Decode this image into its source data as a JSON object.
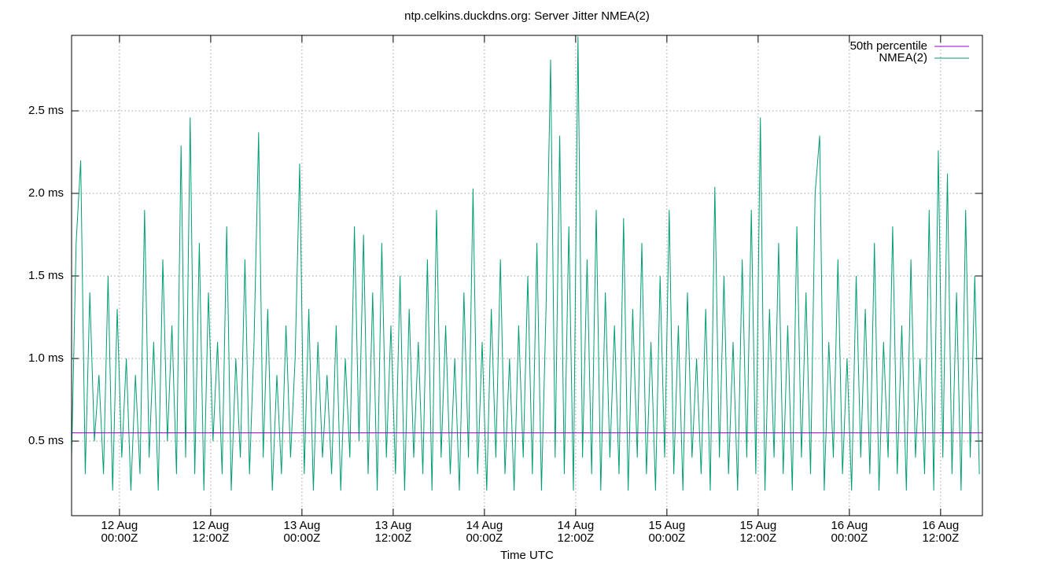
{
  "chart_data": {
    "type": "line",
    "title": "ntp.celkins.duckdns.org: Server Jitter NMEA(2)",
    "x_label": "Time UTC",
    "xlim": [
      -6.3,
      113.5
    ],
    "ylim": [
      0.048,
      2.957
    ],
    "grid": true,
    "legend": "upper right",
    "xticks": [
      {
        "value": 0,
        "label": [
          "12 Aug",
          "00:00Z"
        ]
      },
      {
        "value": 12,
        "label": [
          "12 Aug",
          "12:00Z"
        ]
      },
      {
        "value": 24,
        "label": [
          "13 Aug",
          "00:00Z"
        ]
      },
      {
        "value": 36,
        "label": [
          "13 Aug",
          "12:00Z"
        ]
      },
      {
        "value": 48,
        "label": [
          "14 Aug",
          "00:00Z"
        ]
      },
      {
        "value": 60,
        "label": [
          "14 Aug",
          "12:00Z"
        ]
      },
      {
        "value": 72,
        "label": [
          "15 Aug",
          "00:00Z"
        ]
      },
      {
        "value": 84,
        "label": [
          "15 Aug",
          "12:00Z"
        ]
      },
      {
        "value": 96,
        "label": [
          "16 Aug",
          "00:00Z"
        ]
      },
      {
        "value": 108,
        "label": [
          "16 Aug",
          "12:00Z"
        ]
      }
    ],
    "yticks": [
      {
        "value": 0.5,
        "label": "0.5 ms"
      },
      {
        "value": 1.0,
        "label": "1.0 ms"
      },
      {
        "value": 1.5,
        "label": "1.5 ms"
      },
      {
        "value": 2.0,
        "label": "2.0 ms"
      },
      {
        "value": 2.5,
        "label": "2.5 ms"
      }
    ],
    "series": [
      {
        "name": "50th percentile",
        "color": "#9400d3",
        "x": [
          -6.3,
          113.5
        ],
        "values": [
          0.55,
          0.55
        ]
      },
      {
        "name": "NMEA(2)",
        "color": "#009e73",
        "x": [
          -6.3,
          -5.7,
          -5.1,
          -4.5,
          -3.9,
          -3.3,
          -2.7,
          -2.1,
          -1.5,
          -0.9,
          -0.3,
          0.3,
          0.9,
          1.5,
          2.1,
          2.7,
          3.3,
          3.9,
          4.5,
          5.1,
          5.7,
          6.3,
          6.9,
          7.5,
          8.1,
          8.7,
          9.3,
          9.9,
          10.5,
          11.1,
          11.7,
          12.3,
          12.9,
          13.5,
          14.1,
          14.7,
          15.3,
          15.9,
          16.5,
          17.1,
          17.7,
          18.3,
          18.9,
          19.5,
          20.1,
          20.7,
          21.3,
          21.9,
          22.5,
          23.1,
          23.7,
          24.3,
          24.9,
          25.5,
          26.1,
          26.7,
          27.3,
          27.9,
          28.5,
          29.1,
          29.7,
          30.3,
          30.9,
          31.5,
          32.1,
          32.7,
          33.3,
          33.9,
          34.5,
          35.1,
          35.7,
          36.3,
          36.9,
          37.5,
          38.1,
          38.7,
          39.3,
          39.9,
          40.5,
          41.1,
          41.7,
          42.3,
          42.9,
          43.5,
          44.1,
          44.7,
          45.3,
          45.9,
          46.5,
          47.1,
          47.7,
          48.3,
          48.9,
          49.5,
          50.1,
          50.7,
          51.3,
          51.9,
          52.5,
          53.1,
          53.7,
          54.3,
          54.9,
          55.5,
          56.1,
          56.7,
          57.3,
          57.9,
          58.5,
          59.1,
          59.7,
          60.3,
          60.9,
          61.5,
          62.1,
          62.7,
          63.3,
          63.9,
          64.5,
          65.1,
          65.7,
          66.3,
          66.9,
          67.5,
          68.1,
          68.7,
          69.3,
          69.9,
          70.5,
          71.1,
          71.7,
          72.3,
          72.9,
          73.5,
          74.1,
          74.7,
          75.3,
          75.9,
          76.5,
          77.1,
          77.7,
          78.3,
          78.9,
          79.5,
          80.1,
          80.7,
          81.3,
          81.9,
          82.5,
          83.1,
          83.7,
          84.3,
          84.9,
          85.5,
          86.1,
          86.7,
          87.3,
          87.9,
          88.5,
          89.1,
          89.7,
          90.3,
          90.9,
          91.5,
          92.1,
          92.7,
          93.3,
          93.9,
          94.5,
          95.1,
          95.7,
          96.3,
          96.9,
          97.5,
          98.1,
          98.7,
          99.3,
          99.9,
          100.5,
          101.1,
          101.7,
          102.3,
          102.9,
          103.5,
          104.1,
          104.7,
          105.3,
          105.9,
          106.5,
          107.1,
          107.7,
          108.3,
          108.9,
          109.5,
          110.1,
          110.7,
          111.3,
          111.9,
          112.5,
          113.1
        ],
        "values": [
          0.4,
          1.7,
          2.2,
          0.3,
          1.4,
          0.5,
          0.9,
          0.3,
          1.5,
          0.2,
          1.3,
          0.4,
          1.0,
          0.2,
          0.9,
          0.3,
          1.9,
          0.4,
          1.1,
          0.2,
          1.6,
          0.5,
          1.2,
          0.3,
          2.29,
          0.4,
          2.46,
          0.3,
          1.7,
          0.2,
          1.4,
          0.5,
          1.1,
          0.3,
          1.8,
          0.2,
          1.0,
          0.4,
          1.6,
          0.3,
          1.1,
          2.37,
          0.4,
          1.3,
          0.2,
          0.9,
          0.3,
          1.2,
          0.4,
          1.0,
          2.18,
          0.3,
          1.3,
          0.2,
          1.1,
          0.4,
          0.9,
          0.3,
          1.2,
          0.2,
          1.0,
          0.4,
          1.8,
          0.5,
          1.75,
          0.3,
          1.4,
          0.2,
          1.7,
          0.4,
          1.2,
          0.3,
          1.5,
          0.2,
          1.3,
          0.4,
          1.1,
          0.3,
          1.6,
          0.2,
          1.9,
          0.4,
          1.2,
          0.3,
          1.0,
          0.2,
          1.4,
          0.4,
          2.03,
          0.3,
          1.1,
          0.2,
          1.3,
          0.4,
          1.6,
          0.3,
          1.0,
          0.2,
          1.2,
          0.4,
          1.5,
          0.3,
          1.7,
          0.2,
          1.3,
          2.81,
          0.4,
          2.35,
          0.3,
          1.8,
          0.2,
          2.95,
          0.4,
          1.6,
          0.3,
          1.9,
          0.2,
          1.4,
          0.4,
          1.2,
          0.3,
          1.85,
          0.2,
          1.3,
          0.4,
          1.7,
          0.3,
          1.1,
          0.2,
          1.5,
          0.4,
          1.9,
          0.3,
          1.2,
          0.2,
          1.4,
          0.4,
          1.0,
          0.3,
          1.3,
          0.2,
          2.04,
          0.4,
          1.5,
          0.3,
          1.1,
          0.2,
          1.6,
          0.4,
          1.9,
          0.3,
          2.46,
          0.2,
          1.3,
          0.4,
          1.7,
          0.3,
          1.2,
          0.2,
          1.8,
          0.4,
          1.4,
          0.3,
          2.0,
          2.35,
          0.2,
          1.1,
          0.4,
          1.6,
          0.3,
          1.0,
          0.2,
          1.5,
          0.4,
          1.3,
          0.3,
          1.7,
          0.2,
          1.1,
          0.4,
          1.8,
          0.3,
          1.2,
          0.2,
          1.6,
          0.4,
          1.0,
          0.3,
          1.9,
          0.2,
          2.26,
          0.4,
          2.12,
          0.3,
          1.4,
          0.2,
          1.9,
          0.4,
          1.5,
          0.3
        ]
      }
    ]
  }
}
